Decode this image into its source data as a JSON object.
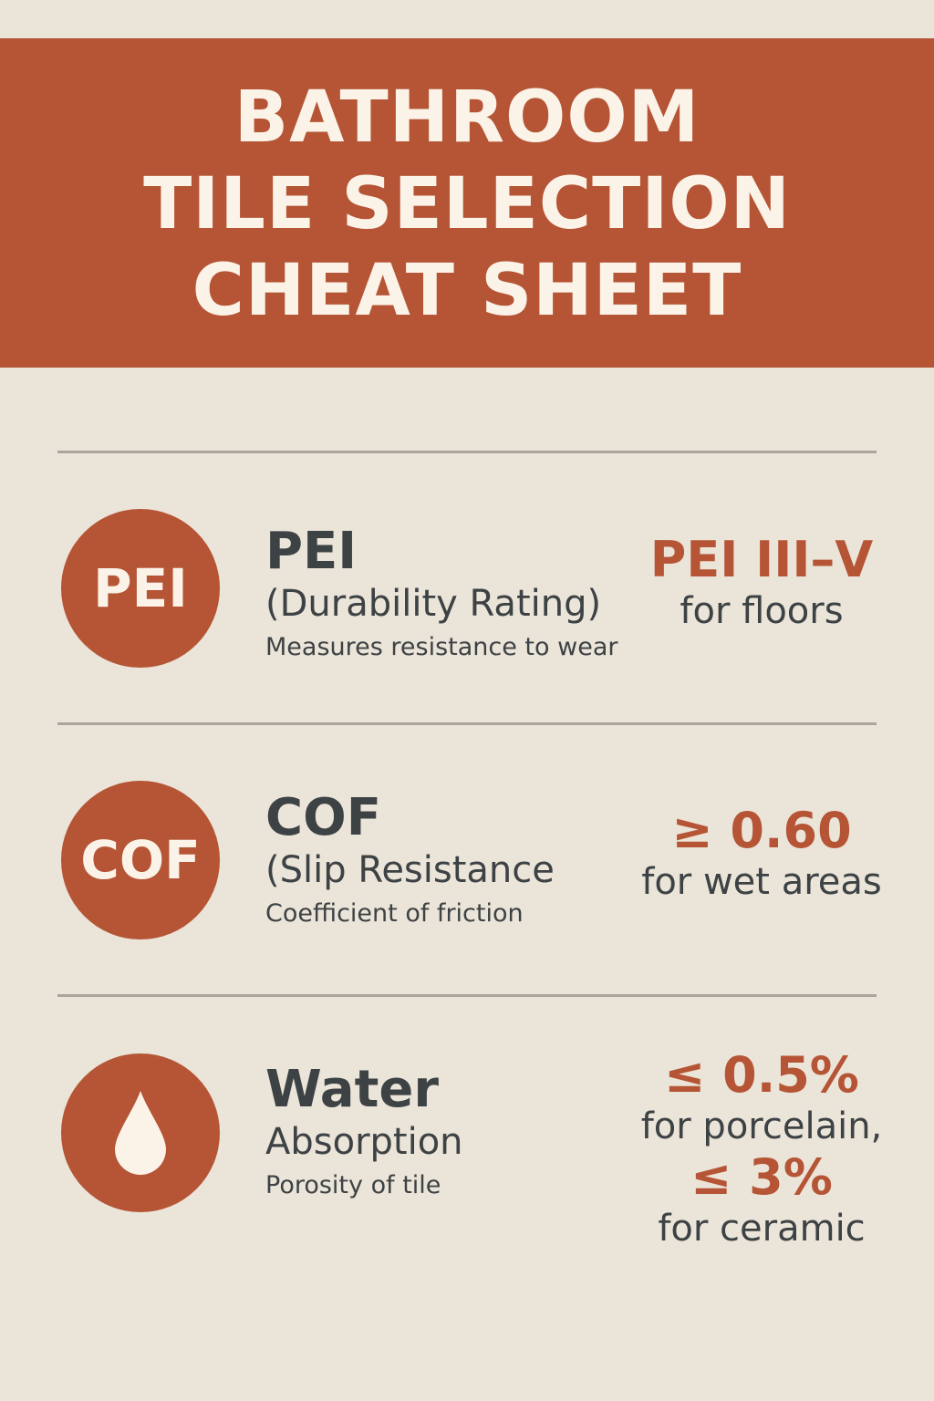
{
  "header": {
    "title_lines": [
      "BATHROOM",
      "TILE SELECTION",
      "CHEAT SHEET"
    ]
  },
  "colors": {
    "accent": "#b55535",
    "background": "#ebe4d9",
    "text": "#3d4244",
    "icon_fill": "#fbf3e8"
  },
  "rows": [
    {
      "icon_text": "PEI",
      "title": "PEI",
      "subtitle": "(Durability Rating)",
      "description": "Measures resistance to wear",
      "value": "PEI III–V",
      "value_note": "for floors"
    },
    {
      "icon_text": "COF",
      "title": "COF",
      "subtitle": "(Slip Resistance",
      "description": "Coefficient of friction",
      "value": "≥ 0.60",
      "value_note": "for wet areas"
    },
    {
      "icon": "water-drop-icon",
      "title": "Water",
      "subtitle": "Absorption",
      "description": "Porosity of tile",
      "value": "≤ 0.5%",
      "value_note": "for porcelain,",
      "value2": "≤ 3%",
      "value2_note": "for ceramic"
    }
  ]
}
